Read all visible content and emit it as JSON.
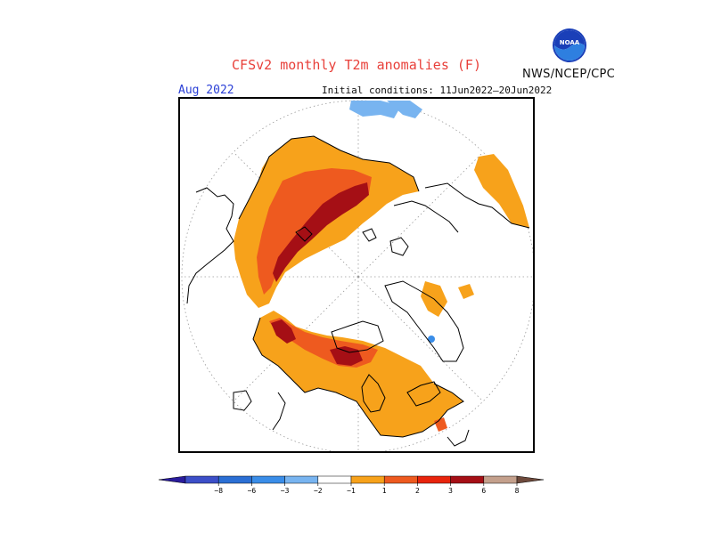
{
  "title": "CFSv2 monthly T2m anomalies (F)",
  "organization": "NWS/NCEP/CPC",
  "logo_text": "NOAA",
  "target_month": "Aug 2022",
  "initial_conditions": "Initial conditions: 11Jun2022–20Jun2022",
  "colors": {
    "title": "#e8403a",
    "month": "#2a3fd6",
    "anom_1_2": "#f7a21b",
    "anom_2_3": "#ee5a1f",
    "anom_3_6": "#a50f15",
    "anom_neg_1_2": "#78b4f0",
    "anom_neg_2_3": "#3a8de8"
  },
  "colorbar": {
    "ticks": [
      "−8",
      "−6",
      "−3",
      "−2",
      "−1",
      "1",
      "2",
      "3",
      "6",
      "8"
    ],
    "bins": [
      {
        "color": "#2a1c9c"
      },
      {
        "color": "#3c4fc8"
      },
      {
        "color": "#2b6fd4"
      },
      {
        "color": "#3a8de8"
      },
      {
        "color": "#78b4f0"
      },
      {
        "color": "#ffffff"
      },
      {
        "color": "#f7a21b"
      },
      {
        "color": "#ee5a1f"
      },
      {
        "color": "#e8240c"
      },
      {
        "color": "#a50f15"
      },
      {
        "color": "#c4a08c"
      },
      {
        "color": "#6e4a3c"
      }
    ]
  }
}
